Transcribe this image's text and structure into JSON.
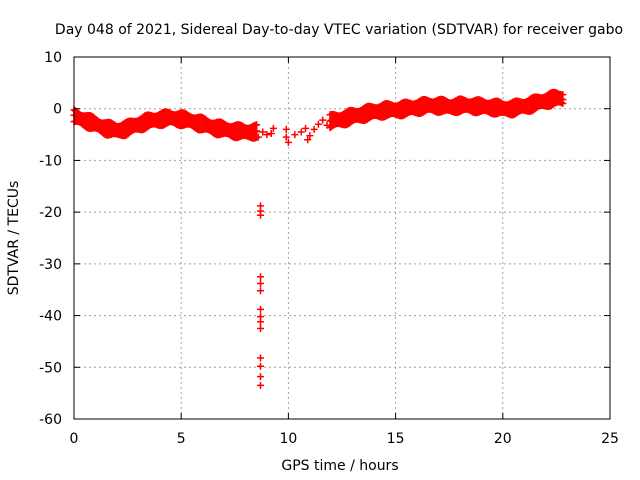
{
  "chart_data": {
    "type": "scatter",
    "title": "Day 048 of 2021, Sidereal Day-to-day VTEC variation (SDTVAR) for receiver gabo",
    "xlabel": "GPS time / hours",
    "ylabel": "SDTVAR / TECUs",
    "xlim": [
      0,
      25
    ],
    "ylim": [
      -60,
      10
    ],
    "xticks": [
      0,
      5,
      10,
      15,
      20,
      25
    ],
    "yticks": [
      10,
      0,
      -10,
      -20,
      -30,
      -40,
      -50,
      -60
    ],
    "grid": true,
    "marker": "+",
    "series_color": "#ff0000",
    "trend": [
      [
        0.0,
        -1.5
      ],
      [
        0.5,
        -2.2
      ],
      [
        1.0,
        -3.0
      ],
      [
        1.5,
        -3.8
      ],
      [
        2.0,
        -4.2
      ],
      [
        2.5,
        -3.8
      ],
      [
        3.0,
        -3.0
      ],
      [
        3.5,
        -2.4
      ],
      [
        4.0,
        -2.0
      ],
      [
        4.5,
        -1.8
      ],
      [
        5.0,
        -2.0
      ],
      [
        5.5,
        -2.4
      ],
      [
        6.0,
        -3.0
      ],
      [
        6.5,
        -3.6
      ],
      [
        7.0,
        -4.0
      ],
      [
        7.5,
        -4.3
      ],
      [
        8.0,
        -4.5
      ],
      [
        8.5,
        -4.4
      ],
      [
        9.0,
        -4.4
      ],
      [
        9.5,
        -4.5
      ],
      [
        10.0,
        -4.2
      ],
      [
        10.5,
        -4.0
      ],
      [
        11.0,
        -3.6
      ],
      [
        11.5,
        -2.8
      ],
      [
        12.0,
        -2.4
      ],
      [
        12.5,
        -2.0
      ],
      [
        13.0,
        -1.5
      ],
      [
        13.5,
        -1.0
      ],
      [
        14.0,
        -0.6
      ],
      [
        14.5,
        -0.3
      ],
      [
        15.0,
        -0.2
      ],
      [
        15.5,
        0.0
      ],
      [
        16.0,
        0.3
      ],
      [
        16.5,
        0.6
      ],
      [
        17.0,
        0.6
      ],
      [
        17.5,
        0.4
      ],
      [
        18.0,
        0.6
      ],
      [
        18.5,
        0.6
      ],
      [
        19.0,
        0.4
      ],
      [
        19.5,
        0.3
      ],
      [
        20.0,
        0.0
      ],
      [
        20.5,
        0.1
      ],
      [
        21.0,
        0.5
      ],
      [
        21.5,
        1.0
      ],
      [
        22.0,
        1.6
      ],
      [
        22.5,
        2.0
      ],
      [
        22.8,
        2.0
      ]
    ],
    "band_width": 2.0,
    "gap_points": [
      [
        8.6,
        -5.5
      ],
      [
        8.8,
        -4.5
      ],
      [
        9.0,
        -5.0
      ],
      [
        9.2,
        -4.8
      ],
      [
        9.3,
        -3.8
      ],
      [
        9.9,
        -4.0
      ],
      [
        9.9,
        -5.5
      ],
      [
        10.0,
        -6.5
      ],
      [
        10.3,
        -5.0
      ],
      [
        10.6,
        -4.5
      ],
      [
        10.8,
        -3.8
      ],
      [
        10.9,
        -6.0
      ],
      [
        11.0,
        -5.2
      ],
      [
        11.2,
        -4.0
      ],
      [
        11.4,
        -3.0
      ],
      [
        11.6,
        -2.2
      ],
      [
        11.8,
        -3.2
      ]
    ],
    "outliers": [
      [
        8.7,
        -18.8
      ],
      [
        8.7,
        -19.8
      ],
      [
        8.7,
        -20.6
      ],
      [
        8.7,
        -32.5
      ],
      [
        8.7,
        -33.8
      ],
      [
        8.7,
        -35.2
      ],
      [
        8.7,
        -38.8
      ],
      [
        8.7,
        -40.2
      ],
      [
        8.7,
        -41.2
      ],
      [
        8.7,
        -42.5
      ],
      [
        8.7,
        -48.2
      ],
      [
        8.7,
        -49.8
      ],
      [
        8.7,
        -51.8
      ],
      [
        8.7,
        -53.5
      ]
    ]
  }
}
